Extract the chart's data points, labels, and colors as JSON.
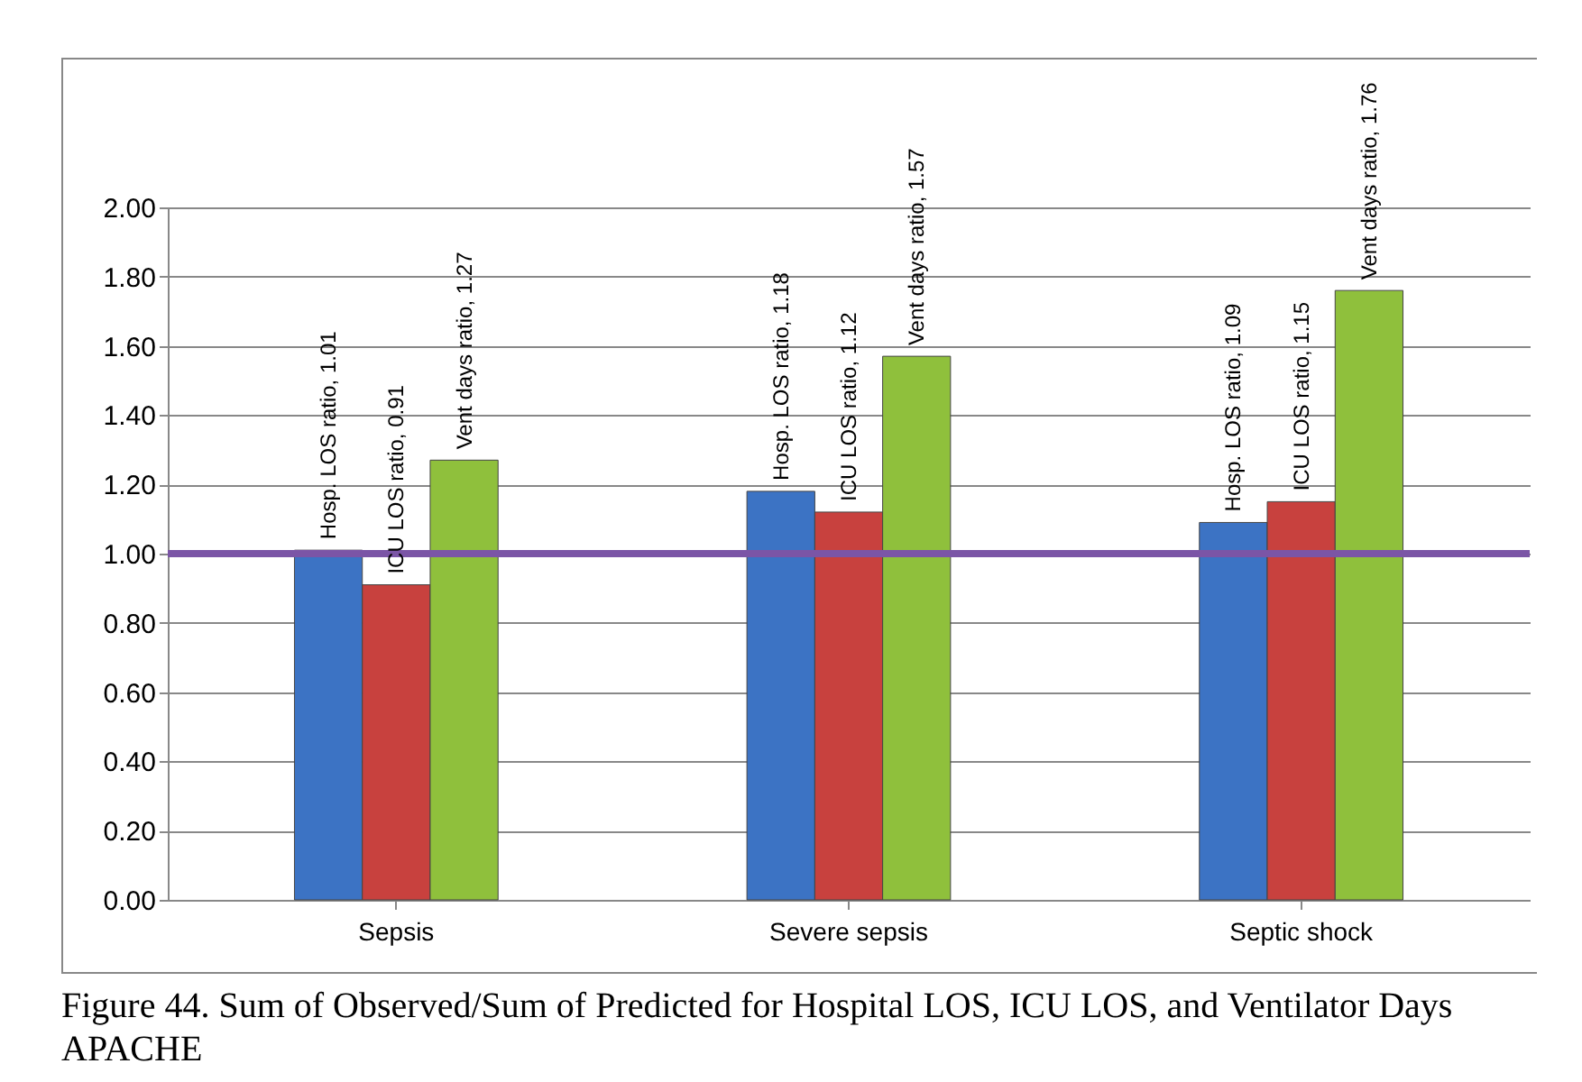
{
  "chart_data": {
    "type": "bar",
    "categories": [
      "Sepsis",
      "Severe sepsis",
      "Septic shock"
    ],
    "series": [
      {
        "color": "#3c73c4",
        "values": [
          1.01,
          1.18,
          1.09
        ],
        "value_labels": [
          "Hosp. LOS ratio, 1.01",
          "Hosp. LOS ratio, 1.18",
          "Hosp. LOS ratio, 1.09"
        ]
      },
      {
        "color": "#c8413e",
        "values": [
          0.91,
          1.12,
          1.15
        ],
        "value_labels": [
          "ICU LOS ratio, 0.91",
          "ICU LOS ratio, 1.12",
          "ICU LOS ratio, 1.15"
        ]
      },
      {
        "color": "#8fc03c",
        "values": [
          1.27,
          1.57,
          1.76
        ],
        "value_labels": [
          "Vent days ratio, 1.27",
          "Vent days ratio, 1.57",
          "Vent days ratio, 1.76"
        ]
      }
    ],
    "ylim": [
      0,
      2
    ],
    "yticks": [
      {
        "value": 0,
        "label": "0.00"
      },
      {
        "value": 0.2,
        "label": "0.20"
      },
      {
        "value": 0.4,
        "label": "0.40"
      },
      {
        "value": 0.6,
        "label": "0.60"
      },
      {
        "value": 0.8,
        "label": "0.80"
      },
      {
        "value": 1,
        "label": "1.00"
      },
      {
        "value": 1.2,
        "label": "1.20"
      },
      {
        "value": 1.4,
        "label": "1.40"
      },
      {
        "value": 1.6,
        "label": "1.60"
      },
      {
        "value": 1.8,
        "label": "1.80"
      },
      {
        "value": 2,
        "label": "2.00"
      }
    ],
    "ref_lines": [
      {
        "axis": "y",
        "value": 1,
        "color": "#7b55a6"
      }
    ],
    "grid": "y",
    "legend": false,
    "annotations": [
      "Figure 44.  Sum of Observed/Sum of Predicted for Hospital LOS, ICU LOS, and Ventilator Days APACHE"
    ]
  }
}
